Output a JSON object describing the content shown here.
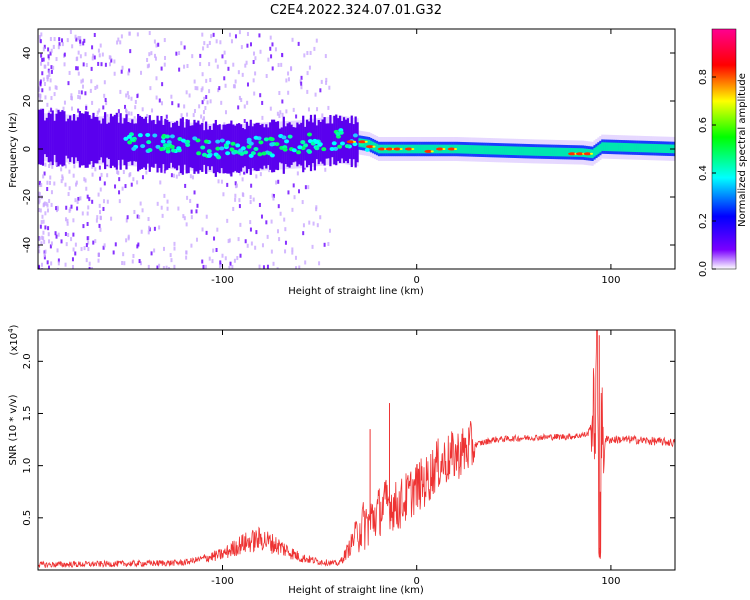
{
  "title": "C2E4.2022.324.07.01.G32",
  "chart_data": [
    {
      "type": "heatmap",
      "xlabel": "Height of straight line (km)",
      "ylabel": "Frequency (Hz)",
      "xlim": [
        -195,
        133
      ],
      "ylim": [
        -50,
        50
      ],
      "xticks": [
        -100,
        0,
        100
      ],
      "xtick_labels": [
        "-100",
        "0",
        "100"
      ],
      "yticks": [
        -40,
        -20,
        0,
        20,
        40
      ],
      "ytick_labels": [
        "-40",
        "-20",
        "0",
        "20",
        "40"
      ],
      "grid": false,
      "colorbar": {
        "label": "Normalized spectral amplitude",
        "range": [
          0,
          1
        ],
        "ticks": [
          0,
          0.2,
          0.4,
          0.6,
          0.8
        ],
        "tick_labels": [
          "0.0",
          "0.2",
          "0.4",
          "0.6",
          "0.8"
        ],
        "colormap": [
          "#ffffff",
          "#6a00ff",
          "#0000ff",
          "#00ffff",
          "#00ff00",
          "#ffff00",
          "#ff0000",
          "#ff00aa"
        ]
      },
      "band": {
        "x": [
          -195,
          -150,
          -100,
          -60,
          -40,
          -25,
          -20,
          0,
          20,
          60,
          85,
          90,
          95,
          133
        ],
        "center_hz": [
          5,
          3,
          0,
          2,
          4,
          2,
          0,
          0,
          0,
          -1,
          -1.5,
          -2,
          1,
          0
        ]
      }
    },
    {
      "type": "line",
      "xlabel": "Height of straight line (km)",
      "ylabel": "SNR (10 * v/v)",
      "yscale_label": "(x10",
      "yscale_exp": "4",
      "yscale_close": ")",
      "xlim": [
        -195,
        133
      ],
      "ylim": [
        0,
        2.3
      ],
      "xticks": [
        -100,
        0,
        100
      ],
      "xtick_labels": [
        "-100",
        "0",
        "100"
      ],
      "yticks": [
        0.5,
        1.0,
        1.5,
        2.0
      ],
      "ytick_labels": [
        "0.5",
        "1.0",
        "1.5",
        "2.0"
      ],
      "color": "#ee3333",
      "grid": false,
      "series": [
        {
          "x": [
            -195,
            -150,
            -120,
            -100,
            -90,
            -80,
            -70,
            -60,
            -50,
            -40,
            -35,
            -30,
            -25,
            -20,
            -15,
            -10,
            -5,
            0,
            5,
            10,
            20,
            30,
            40,
            60,
            80,
            88,
            92,
            93,
            94,
            95,
            96,
            100,
            110,
            133
          ],
          "y": [
            0.05,
            0.06,
            0.07,
            0.15,
            0.25,
            0.3,
            0.22,
            0.12,
            0.08,
            0.06,
            0.2,
            0.4,
            0.45,
            0.55,
            0.65,
            0.6,
            0.7,
            0.8,
            0.85,
            1.0,
            1.1,
            1.2,
            1.25,
            1.27,
            1.28,
            1.3,
            1.5,
            2.2,
            0.2,
            1.3,
            1.25,
            1.25,
            1.25,
            1.22
          ]
        }
      ],
      "spikes": [
        {
          "x": -14,
          "y": 1.6
        },
        {
          "x": -24,
          "y": 1.35
        },
        {
          "x": 94,
          "y": 2.25
        },
        {
          "x": 94.5,
          "y": 0.12
        }
      ]
    }
  ]
}
